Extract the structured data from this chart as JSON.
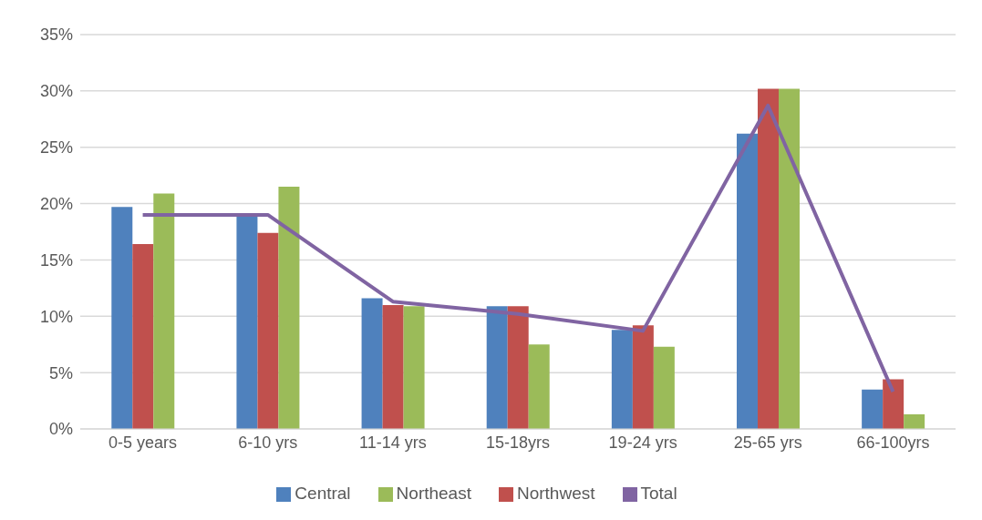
{
  "chart_data": {
    "type": "bar",
    "categories": [
      "0-5 years",
      "6-10 yrs",
      "11-14 yrs",
      "15-18yrs",
      "19-24 yrs",
      "25-65 yrs",
      "66-100yrs"
    ],
    "series": [
      {
        "name": "Central",
        "color": "#4f81bd",
        "values": [
          19.7,
          18.9,
          11.6,
          10.9,
          8.8,
          26.2,
          3.5
        ]
      },
      {
        "name": "Northwest",
        "color": "#c0504d",
        "values": [
          16.4,
          17.4,
          11.0,
          10.9,
          9.2,
          30.2,
          4.4
        ]
      },
      {
        "name": "Northeast",
        "color": "#9bbb59",
        "values": [
          20.9,
          21.5,
          10.9,
          7.5,
          7.3,
          30.2,
          1.3
        ]
      },
      {
        "name": "Total",
        "type": "line",
        "color": "#8064a2",
        "values": [
          19.0,
          19.0,
          11.3,
          10.2,
          8.7,
          28.7,
          3.3
        ]
      }
    ],
    "ylim": [
      0,
      35
    ],
    "yticks": [
      {
        "value": 0,
        "label": "0%"
      },
      {
        "value": 5,
        "label": "5%"
      },
      {
        "value": 10,
        "label": "10%"
      },
      {
        "value": 15,
        "label": "15%"
      },
      {
        "value": 20,
        "label": "20%"
      },
      {
        "value": 25,
        "label": "25%"
      },
      {
        "value": 30,
        "label": "30%"
      },
      {
        "value": 35,
        "label": "35%"
      }
    ],
    "grid": "y",
    "legend": "bottom",
    "marker": "none"
  }
}
